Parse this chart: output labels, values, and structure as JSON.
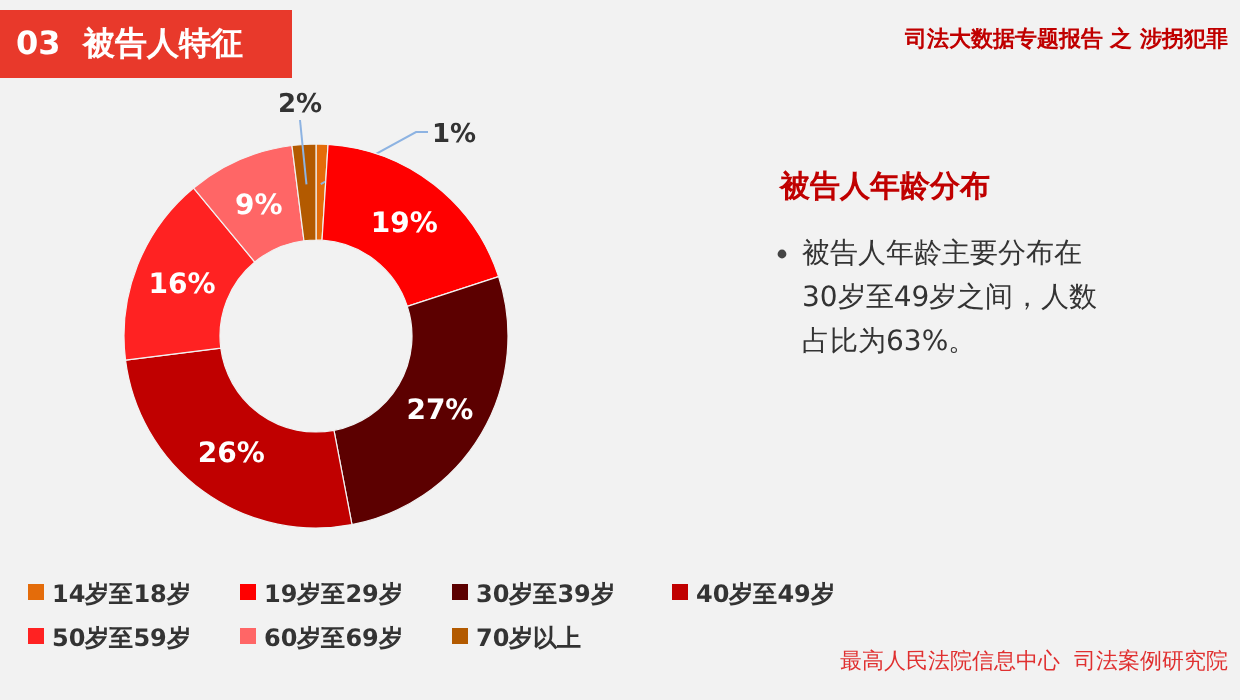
{
  "chart_data": {
    "type": "donut",
    "title": "被告人年龄分布",
    "categories": [
      "14岁至18岁",
      "19岁至29岁",
      "30岁至39岁",
      "40岁至49岁",
      "50岁至59岁",
      "60岁至69岁",
      "70岁以上"
    ],
    "values": [
      1,
      19,
      27,
      26,
      16,
      9,
      2
    ],
    "value_labels": [
      "1%",
      "19%",
      "27%",
      "26%",
      "16%",
      "9%",
      "2%"
    ],
    "colors": [
      "#e46c0a",
      "#ff0000",
      "#5c0000",
      "#c00000",
      "#ff2222",
      "#ff6666",
      "#b35a00"
    ],
    "legend": "bottom",
    "annotations": [
      "03  被告人特征",
      "司法大数据专题报告 之 涉拐犯罪",
      "被告人年龄主要分布在30岁至49岁之间，人数占比为63%。",
      "最高人民法院信息中心  司法案例研究院"
    ]
  }
}
